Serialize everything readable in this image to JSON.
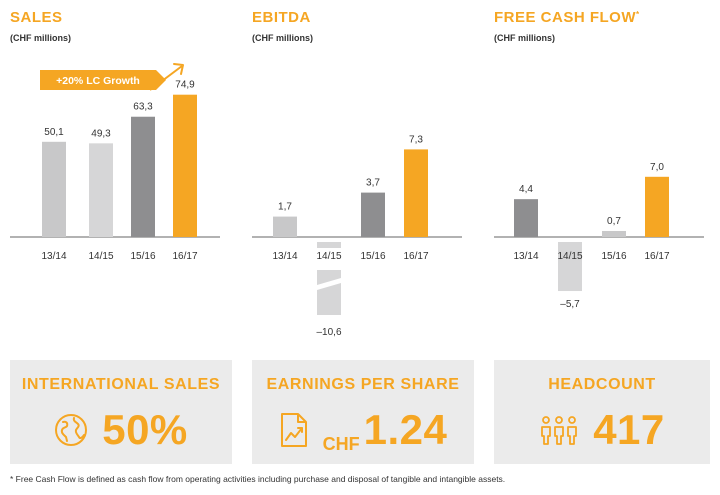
{
  "colors": {
    "accent": "#f5a623",
    "gray_dark": "#8e8e90",
    "gray_light": "#c8c8c9",
    "box_bg": "#ebebeb"
  },
  "chart_data": [
    {
      "type": "bar",
      "title": "SALES",
      "subtitle": "(CHF millions)",
      "categories": [
        "13/14",
        "14/15",
        "15/16",
        "16/17"
      ],
      "values": [
        50.1,
        49.3,
        63.3,
        74.9
      ],
      "value_labels": [
        "50,1",
        "49,3",
        "63,3",
        "74,9"
      ],
      "bar_colors": [
        "#c8c8c9",
        "#d6d6d7",
        "#8e8e90",
        "#f5a623"
      ],
      "annotation": "+20% LC Growth",
      "ylim": [
        0,
        80
      ]
    },
    {
      "type": "bar",
      "title": "EBITDA",
      "subtitle": "(CHF millions)",
      "categories": [
        "13/14",
        "14/15",
        "15/16",
        "16/17"
      ],
      "values": [
        1.7,
        -10.6,
        3.7,
        7.3
      ],
      "value_labels": [
        "1,7",
        "–10,6",
        "3,7",
        "7,3"
      ],
      "bar_colors": [
        "#c8c8c9",
        "#d6d6d7",
        "#8e8e90",
        "#f5a623"
      ],
      "broken_axis": true,
      "ylim": [
        -10.6,
        7.3
      ]
    },
    {
      "type": "bar",
      "title": "FREE CASH FLOW",
      "title_mark": "*",
      "subtitle": "(CHF millions)",
      "categories": [
        "13/14",
        "14/15",
        "15/16",
        "16/17"
      ],
      "values": [
        4.4,
        -5.7,
        0.7,
        7.0
      ],
      "value_labels": [
        "4,4",
        "–5,7",
        "0,7",
        "7,0"
      ],
      "bar_colors": [
        "#8e8e90",
        "#d6d6d7",
        "#c8c8c9",
        "#f5a623"
      ],
      "ylim": [
        -7,
        7.3
      ]
    }
  ],
  "kpis": [
    {
      "title": "INTERNATIONAL SALES",
      "value": "50%",
      "icon": "globe-icon"
    },
    {
      "title": "EARNINGS PER SHARE",
      "prefix": "CHF",
      "value": "1.24",
      "icon": "document-chart-icon"
    },
    {
      "title": "HEADCOUNT",
      "value": "417",
      "icon": "people-icon"
    }
  ],
  "footnote": "* Free Cash Flow is defined as cash flow from operating activities including purchase and disposal of tangible and intangible assets."
}
